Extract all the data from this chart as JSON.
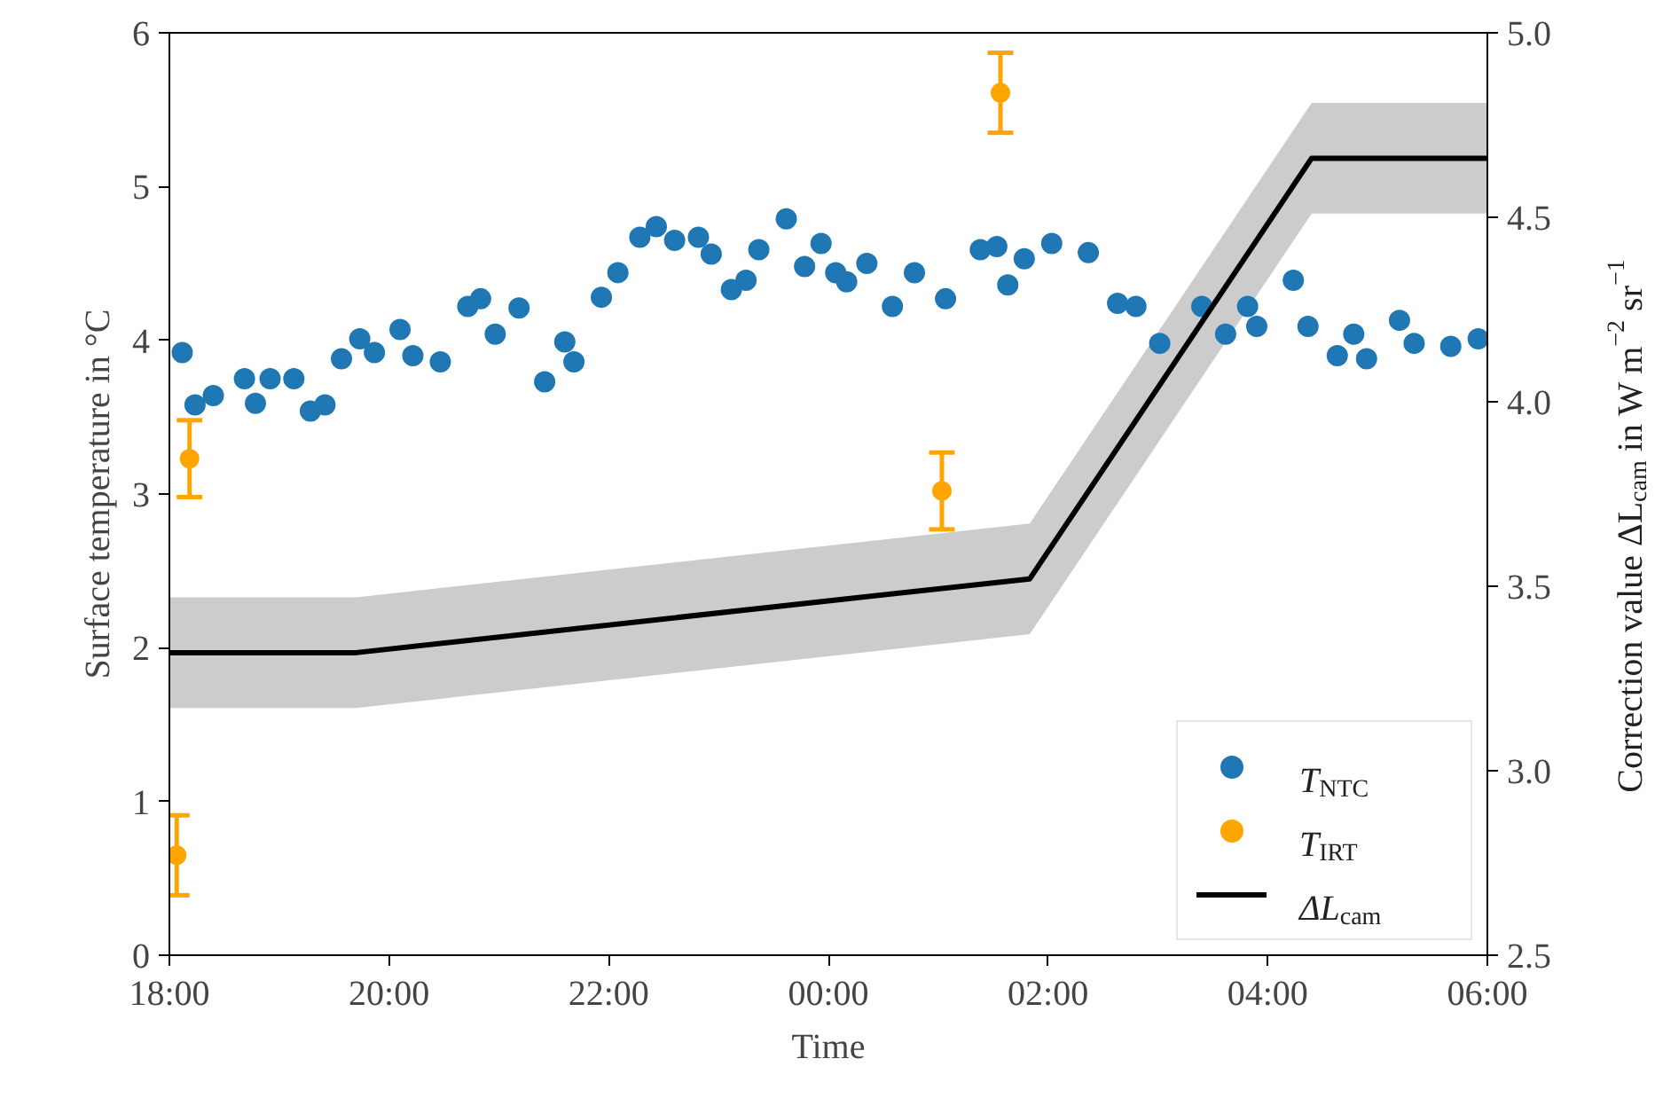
{
  "chart_data": {
    "type": "scatter",
    "xlabel": "Time",
    "ylabel": "Surface temperature in °C",
    "y2label": "Correction value ΔL$_{cam}$ in W m$^{−2}$ sr$^{−1}$",
    "xlim": [
      "2000-01-01T18:00",
      "2000-01-02T06:00"
    ],
    "xticks": [
      {
        "value": "2000-01-01T18:00",
        "label": "18:00"
      },
      {
        "value": "2000-01-01T20:00",
        "label": "20:00"
      },
      {
        "value": "2000-01-01T22:00",
        "label": "22:00"
      },
      {
        "value": "2000-01-02T00:00",
        "label": "00:00"
      },
      {
        "value": "2000-01-02T02:00",
        "label": "02:00"
      },
      {
        "value": "2000-01-02T04:00",
        "label": "04:00"
      },
      {
        "value": "2000-01-02T06:00",
        "label": "06:00"
      }
    ],
    "ylim": [
      0,
      6
    ],
    "yticks": [
      0,
      1,
      2,
      3,
      4,
      5,
      6
    ],
    "y2lim": [
      2.5,
      5.0
    ],
    "y2ticks": [
      {
        "value": 2.5,
        "label": "2.5"
      },
      {
        "value": 3.0,
        "label": "3.0"
      },
      {
        "value": 3.5,
        "label": "3.5"
      },
      {
        "value": 4.0,
        "label": "4.0"
      },
      {
        "value": 4.5,
        "label": "4.5"
      },
      {
        "value": 5.0,
        "label": "5.0"
      }
    ],
    "grid": false,
    "legend": "bottom right",
    "marker": "circle",
    "series": [
      {
        "name": "T$_{NTC}$",
        "color": "#1f77b4",
        "x": [
          "2000-01-01T18:07",
          "2000-01-01T18:14",
          "2000-01-01T18:24",
          "2000-01-01T18:41",
          "2000-01-01T18:47",
          "2000-01-01T18:55",
          "2000-01-01T19:08",
          "2000-01-01T19:17",
          "2000-01-01T19:25",
          "2000-01-01T19:34",
          "2000-01-01T19:44",
          "2000-01-01T19:52",
          "2000-01-01T20:06",
          "2000-01-01T20:13",
          "2000-01-01T20:28",
          "2000-01-01T20:43",
          "2000-01-01T20:50",
          "2000-01-01T20:58",
          "2000-01-01T21:11",
          "2000-01-01T21:25",
          "2000-01-01T21:36",
          "2000-01-01T21:41",
          "2000-01-01T21:56",
          "2000-01-01T22:05",
          "2000-01-01T22:17",
          "2000-01-01T22:26",
          "2000-01-01T22:36",
          "2000-01-01T22:49",
          "2000-01-01T22:56",
          "2000-01-01T23:07",
          "2000-01-01T23:15",
          "2000-01-01T23:22",
          "2000-01-01T23:37",
          "2000-01-01T23:47",
          "2000-01-01T23:56",
          "2000-01-02T00:04",
          "2000-01-02T00:10",
          "2000-01-02T00:21",
          "2000-01-02T00:35",
          "2000-01-02T00:47",
          "2000-01-02T01:04",
          "2000-01-02T01:23",
          "2000-01-02T01:32",
          "2000-01-02T01:38",
          "2000-01-02T01:47",
          "2000-01-02T02:02",
          "2000-01-02T02:22",
          "2000-01-02T02:38",
          "2000-01-02T02:48",
          "2000-01-02T03:01",
          "2000-01-02T03:24",
          "2000-01-02T03:37",
          "2000-01-02T03:49",
          "2000-01-02T03:54",
          "2000-01-02T04:14",
          "2000-01-02T04:22",
          "2000-01-02T04:38",
          "2000-01-02T04:47",
          "2000-01-02T04:54",
          "2000-01-02T05:12",
          "2000-01-02T05:20",
          "2000-01-02T05:40",
          "2000-01-02T05:55"
        ],
        "values": [
          3.92,
          3.58,
          3.64,
          3.75,
          3.59,
          3.75,
          3.75,
          3.54,
          3.58,
          3.88,
          4.01,
          3.92,
          4.07,
          3.9,
          3.86,
          4.22,
          4.27,
          4.04,
          4.21,
          3.73,
          3.99,
          3.86,
          4.28,
          4.44,
          4.67,
          4.74,
          4.65,
          4.67,
          4.56,
          4.33,
          4.39,
          4.59,
          4.79,
          4.48,
          4.63,
          4.44,
          4.38,
          4.5,
          4.22,
          4.44,
          4.27,
          4.59,
          4.61,
          4.36,
          4.53,
          4.63,
          4.57,
          4.24,
          4.22,
          3.98,
          4.22,
          4.04,
          4.22,
          4.09,
          4.39,
          4.09,
          3.9,
          4.04,
          3.88,
          4.13,
          3.98,
          3.96,
          4.01
        ]
      },
      {
        "name": "T$_{IRT}$",
        "color": "#ffa500",
        "x": [
          "2000-01-01T18:04",
          "2000-01-01T18:11",
          "2000-01-02T01:02",
          "2000-01-02T01:34"
        ],
        "values": [
          0.65,
          3.23,
          3.02,
          5.61
        ],
        "errors": [
          0.26,
          0.25,
          0.25,
          0.26
        ]
      },
      {
        "name": "ΔL$_{cam}$",
        "color": "#000000",
        "type": "line",
        "axis": "y2",
        "marker": "none",
        "x": [
          "2000-01-01T18:00",
          "2000-01-01T19:42",
          "2000-01-02T01:50",
          "2000-01-02T04:24",
          "2000-01-02T06:00"
        ],
        "values": [
          3.32,
          3.32,
          3.52,
          4.66,
          4.66
        ],
        "lower": [
          3.17,
          3.17,
          3.37,
          4.51,
          4.51
        ],
        "upper": [
          3.47,
          3.47,
          3.67,
          4.81,
          4.81
        ]
      }
    ]
  }
}
